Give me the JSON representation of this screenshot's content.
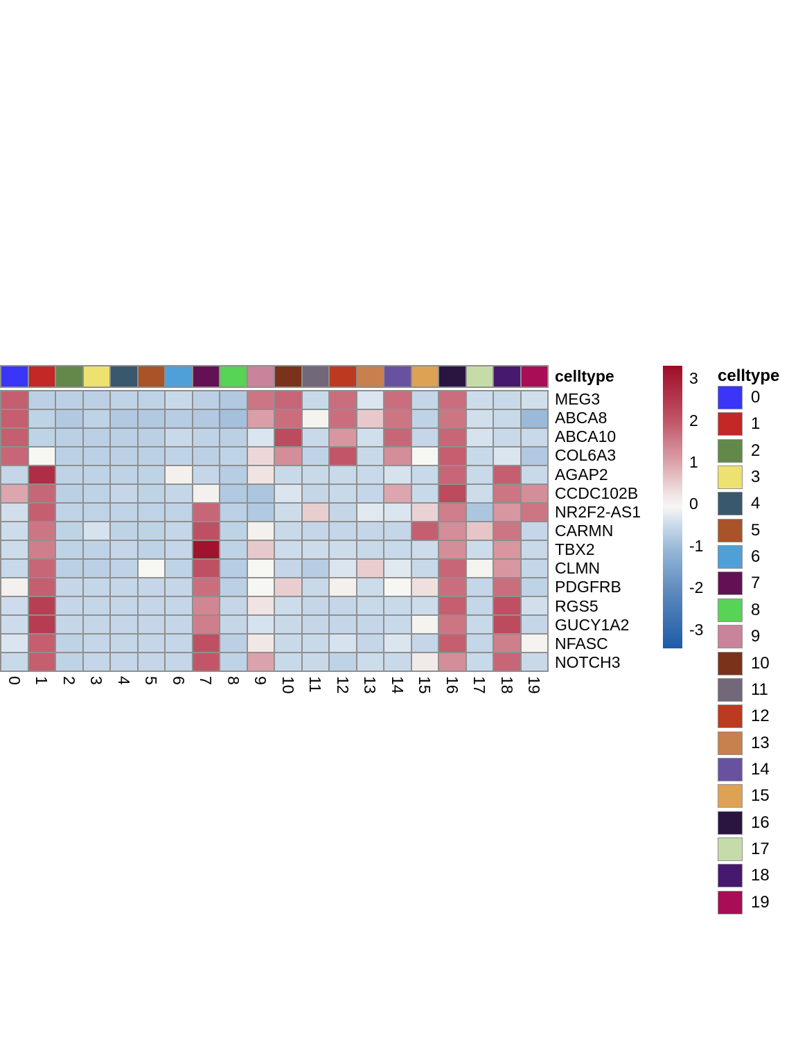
{
  "annotation_header": "celltype",
  "legend": {
    "title": "celltype",
    "labels": [
      "0",
      "1",
      "2",
      "3",
      "4",
      "5",
      "6",
      "7",
      "8",
      "9",
      "10",
      "11",
      "12",
      "13",
      "14",
      "15",
      "16",
      "17",
      "18",
      "19"
    ]
  },
  "colorbar": {
    "ticks": [
      3,
      2,
      1,
      0,
      -1,
      -2,
      -3
    ],
    "domain_max": 3.3,
    "domain_min": -3.45
  },
  "chart_data": {
    "type": "heatmap",
    "title": "",
    "grid_color": "#8f8f8f",
    "columns": [
      "0",
      "1",
      "2",
      "3",
      "4",
      "5",
      "6",
      "7",
      "8",
      "9",
      "10",
      "11",
      "12",
      "13",
      "14",
      "15",
      "16",
      "17",
      "18",
      "19"
    ],
    "rows": [
      "MEG3",
      "ABCA8",
      "ABCA10",
      "COL6A3",
      "AGAP2",
      "CCDC102B",
      "NR2F2-AS1",
      "CARMN",
      "TBX2",
      "CLMN",
      "PDGFRB",
      "RGS5",
      "GUCY1A2",
      "NFASC",
      "NOTCH3"
    ],
    "values": [
      [
        1.9,
        -0.6,
        -0.6,
        -0.6,
        -0.55,
        -0.55,
        -0.45,
        -0.6,
        -0.7,
        1.6,
        1.8,
        -0.45,
        1.7,
        -0.25,
        1.7,
        -0.5,
        1.7,
        -0.4,
        -0.45,
        -0.35
      ],
      [
        1.9,
        -0.55,
        -0.7,
        -0.55,
        -0.7,
        -0.7,
        -0.65,
        -0.7,
        -0.85,
        1.1,
        1.7,
        0.05,
        1.7,
        0.6,
        1.6,
        -0.55,
        1.6,
        -0.35,
        -0.45,
        -0.95
      ],
      [
        1.9,
        -0.55,
        -0.6,
        -0.6,
        -0.6,
        -0.6,
        -0.45,
        -0.55,
        -0.6,
        -0.25,
        2.2,
        -0.45,
        1.2,
        -0.35,
        1.8,
        -0.5,
        1.8,
        -0.3,
        -0.45,
        -0.45
      ],
      [
        1.8,
        0.0,
        -0.6,
        -0.6,
        -0.6,
        -0.6,
        -0.55,
        -0.6,
        -0.55,
        0.45,
        1.3,
        -0.55,
        2.0,
        -0.45,
        1.3,
        0.0,
        1.9,
        -0.45,
        -0.25,
        -0.7
      ],
      [
        -0.5,
        2.7,
        -0.55,
        -0.55,
        -0.55,
        -0.55,
        0.1,
        -0.5,
        -0.65,
        0.3,
        -0.45,
        -0.45,
        -0.45,
        -0.45,
        -0.3,
        -0.45,
        1.8,
        -0.45,
        1.9,
        -0.45
      ],
      [
        1.0,
        1.8,
        -0.6,
        -0.55,
        -0.5,
        -0.55,
        -0.5,
        0.1,
        -0.7,
        -0.75,
        -0.25,
        -0.5,
        -0.45,
        -0.5,
        1.0,
        -0.45,
        2.2,
        -0.4,
        1.6,
        1.3
      ],
      [
        -0.35,
        1.9,
        -0.55,
        -0.55,
        -0.55,
        -0.55,
        -0.55,
        1.8,
        -0.6,
        -0.7,
        -0.4,
        0.55,
        -0.5,
        -0.2,
        -0.25,
        0.5,
        1.5,
        -0.75,
        1.2,
        1.6
      ],
      [
        -0.4,
        1.6,
        -0.55,
        -0.3,
        -0.55,
        -0.55,
        -0.5,
        2.1,
        -0.55,
        0.1,
        -0.45,
        -0.5,
        -0.5,
        -0.5,
        -0.5,
        1.9,
        1.3,
        0.65,
        1.6,
        -0.5
      ],
      [
        -0.4,
        1.5,
        -0.55,
        -0.55,
        -0.5,
        -0.55,
        -0.5,
        3.2,
        -0.55,
        0.6,
        -0.4,
        -0.4,
        -0.4,
        -0.45,
        -0.45,
        -0.4,
        1.3,
        -0.4,
        1.2,
        -0.45
      ],
      [
        -0.45,
        1.8,
        -0.6,
        -0.6,
        -0.55,
        0.0,
        -0.55,
        2.1,
        -0.65,
        0.0,
        -0.5,
        -0.65,
        -0.25,
        0.55,
        -0.2,
        -0.45,
        1.8,
        0.05,
        1.2,
        -0.5
      ],
      [
        0.1,
        1.9,
        -0.5,
        -0.5,
        -0.5,
        -0.5,
        -0.5,
        1.7,
        -0.6,
        0.0,
        0.55,
        -0.45,
        0.1,
        -0.4,
        0.0,
        0.35,
        1.7,
        -0.5,
        1.7,
        -0.55
      ],
      [
        -0.4,
        2.4,
        -0.5,
        -0.5,
        -0.5,
        -0.5,
        -0.5,
        1.4,
        -0.5,
        0.3,
        -0.4,
        -0.5,
        -0.5,
        -0.45,
        -0.45,
        -0.4,
        1.9,
        -0.5,
        2.1,
        -0.35
      ],
      [
        -0.4,
        2.45,
        -0.5,
        -0.5,
        -0.5,
        -0.5,
        -0.5,
        1.5,
        -0.5,
        -0.3,
        -0.45,
        -0.5,
        -0.5,
        -0.5,
        -0.45,
        0.05,
        1.6,
        -0.45,
        2.2,
        -0.5
      ],
      [
        -0.25,
        1.9,
        -0.55,
        -0.5,
        -0.5,
        -0.5,
        -0.5,
        2.1,
        -0.6,
        0.25,
        -0.45,
        -0.45,
        -0.3,
        -0.5,
        -0.25,
        -0.5,
        1.9,
        -0.5,
        1.5,
        0.05
      ],
      [
        -0.45,
        1.9,
        -0.55,
        -0.5,
        -0.5,
        -0.5,
        -0.5,
        2.0,
        -0.55,
        1.05,
        -0.45,
        -0.45,
        -0.55,
        -0.4,
        -0.45,
        0.2,
        1.3,
        -0.45,
        1.8,
        -0.45
      ]
    ],
    "color_stops": [
      [
        3.3,
        "#9E0C27"
      ],
      [
        2.0,
        "#C25668"
      ],
      [
        1.0,
        "#DCA6AE"
      ],
      [
        0.3,
        "#F0E4E3"
      ],
      [
        0.0,
        "#F6F6F3"
      ],
      [
        -0.3,
        "#D6E2EE"
      ],
      [
        -1.0,
        "#96B7D7"
      ],
      [
        -2.0,
        "#5C88BC"
      ],
      [
        -3.3,
        "#1C5CA8"
      ]
    ],
    "column_annotation": {
      "name": "celltype",
      "values": [
        "0",
        "1",
        "2",
        "3",
        "4",
        "5",
        "6",
        "7",
        "8",
        "9",
        "10",
        "11",
        "12",
        "13",
        "14",
        "15",
        "16",
        "17",
        "18",
        "19"
      ],
      "colors": [
        "#3B35F7",
        "#C32726",
        "#62894A",
        "#EDE26F",
        "#39576D",
        "#AA5329",
        "#4FA0D8",
        "#631154",
        "#57D356",
        "#C9839A",
        "#7A331A",
        "#72687A",
        "#BC3A1F",
        "#C8804E",
        "#6852A0",
        "#DDA253",
        "#2A1541",
        "#C5DCA9",
        "#47196E",
        "#A80D55"
      ]
    },
    "legend_position": "right"
  }
}
